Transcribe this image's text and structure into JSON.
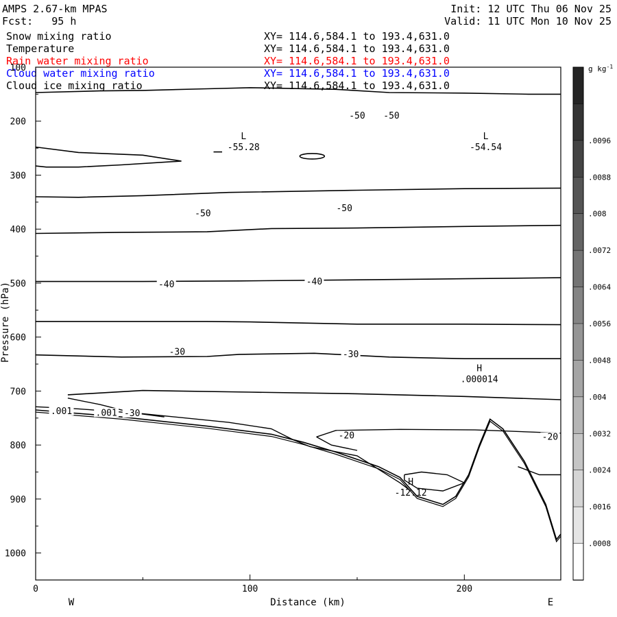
{
  "header": {
    "model": "AMPS 2.67-km MPAS",
    "forecast": "Fcst:   95 h",
    "init": "Init: 12 UTC Thu 06 Nov 25",
    "valid": "Valid: 11 UTC Mon 10 Nov 25"
  },
  "fields": [
    {
      "name": "Snow mixing ratio",
      "xy": "XY= 114.6,584.1 to 193.4,631.0",
      "color": "#000000"
    },
    {
      "name": "Temperature",
      "xy": "XY= 114.6,584.1 to 193.4,631.0",
      "color": "#000000"
    },
    {
      "name": "Rain water mixing ratio",
      "xy": "XY= 114.6,584.1 to 193.4,631.0",
      "color": "#ff0000"
    },
    {
      "name": "Cloud water mixing ratio",
      "xy": "XY= 114.6,584.1 to 193.4,631.0",
      "color": "#0000ff"
    },
    {
      "name": "Cloud ice mixing ratio",
      "xy": "XY= 114.6,584.1 to 193.4,631.0",
      "color": "#000000"
    }
  ],
  "chart_data": {
    "type": "cross-section contour",
    "xlabel": "Distance (km)",
    "ylabel": "Pressure (hPa)",
    "xlim": [
      0,
      245
    ],
    "ylim": [
      100,
      1050
    ],
    "xticks": [
      0,
      100,
      200
    ],
    "yticks": [
      100,
      200,
      300,
      400,
      500,
      600,
      700,
      800,
      900,
      1000
    ],
    "direction_left": "W",
    "direction_right": "E",
    "colorbar": {
      "unit": "g kg",
      "unit_exp": "-1",
      "ticks": [
        ".0008",
        ".0016",
        ".0024",
        ".0032",
        ".004",
        ".0048",
        ".0056",
        ".0064",
        ".0072",
        ".008",
        ".0088",
        ".0096"
      ]
    },
    "contours": [
      {
        "level": -50,
        "points": [
          [
            0,
            147
          ],
          [
            30,
            144
          ],
          [
            50,
            143
          ],
          [
            80,
            140
          ],
          [
            100,
            138
          ],
          [
            140,
            141
          ],
          [
            165,
            147
          ],
          [
            200,
            148
          ],
          [
            230,
            150
          ],
          [
            245,
            150
          ]
        ]
      },
      {
        "level": -50,
        "points": [
          [
            0,
            340
          ],
          [
            20,
            341
          ],
          [
            50,
            338
          ],
          [
            90,
            332
          ],
          [
            150,
            328
          ],
          [
            200,
            325
          ],
          [
            245,
            324
          ]
        ]
      },
      {
        "level": -40,
        "points": [
          [
            0,
            408
          ],
          [
            40,
            406
          ],
          [
            80,
            405
          ],
          [
            110,
            399
          ],
          [
            150,
            398
          ],
          [
            200,
            395
          ],
          [
            245,
            393
          ]
        ]
      },
      {
        "level": -40,
        "points": [
          [
            0,
            497
          ],
          [
            50,
            497
          ],
          [
            95,
            496
          ],
          [
            150,
            494
          ],
          [
            200,
            492
          ],
          [
            245,
            490
          ]
        ]
      },
      {
        "level": -30,
        "points": [
          [
            0,
            571
          ],
          [
            40,
            571
          ],
          [
            80,
            571
          ],
          [
            100,
            572
          ],
          [
            150,
            576
          ],
          [
            200,
            576
          ],
          [
            245,
            577
          ]
        ]
      },
      {
        "level": -30,
        "points": [
          [
            0,
            633
          ],
          [
            40,
            637
          ],
          [
            80,
            636
          ],
          [
            95,
            632
          ],
          [
            130,
            630
          ],
          [
            165,
            637
          ],
          [
            200,
            640
          ],
          [
            245,
            640
          ]
        ]
      },
      {
        "level": -20,
        "points": [
          [
            15,
            707
          ],
          [
            50,
            699
          ],
          [
            100,
            702
          ],
          [
            150,
            705
          ],
          [
            200,
            710
          ],
          [
            245,
            716
          ]
        ]
      }
    ],
    "annotations": [
      {
        "label": "L",
        "value": "-55.28",
        "x": 97,
        "y": 250
      },
      {
        "label": "L",
        "value": "-54.54",
        "x": 210,
        "y": 250
      },
      {
        "label": "H",
        "value": ".000014",
        "x": 207,
        "y": 680
      },
      {
        "label": "H",
        "value": "-12.12",
        "x": 175,
        "y": 890
      }
    ],
    "contour_labels": [
      {
        "text": "-50",
        "x": 150,
        "y": 193
      },
      {
        "text": "-50",
        "x": 166,
        "y": 193
      },
      {
        "text": "-50",
        "x": 78,
        "y": 374
      },
      {
        "text": "-50",
        "x": 144,
        "y": 364
      },
      {
        "text": "-40",
        "x": 61,
        "y": 505
      },
      {
        "text": "-40",
        "x": 130,
        "y": 500
      },
      {
        "text": "-30",
        "x": 66,
        "y": 630
      },
      {
        "text": "-30",
        "x": 147,
        "y": 635
      },
      {
        "text": "-20",
        "x": 145,
        "y": 785
      },
      {
        "text": "-20",
        "x": 240,
        "y": 788
      },
      {
        "text": ".001",
        "x": 12,
        "y": 740
      },
      {
        "text": ".001",
        "x": 33,
        "y": 743
      },
      {
        "text": "-30",
        "x": 45,
        "y": 744
      }
    ]
  }
}
